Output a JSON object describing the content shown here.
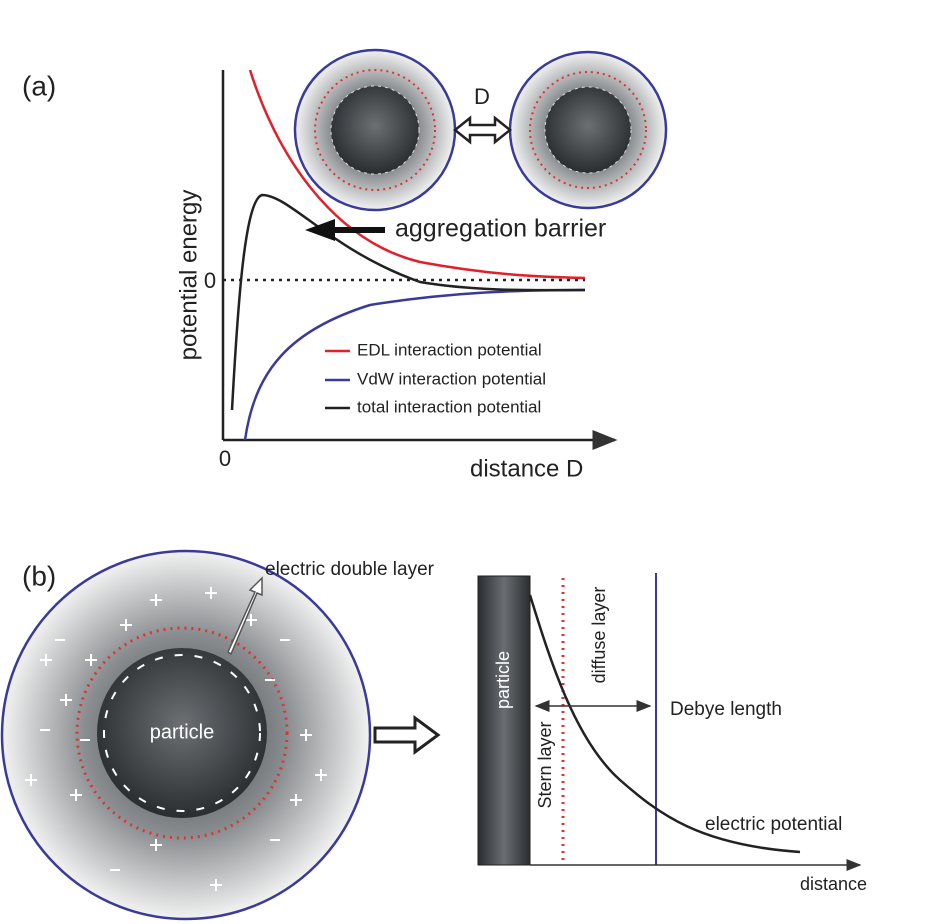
{
  "panel_a": {
    "label": "(a)",
    "separation": "D",
    "barrier": "aggregation barrier",
    "y_axis": "potential energy",
    "y_zero": "0",
    "x_zero": "0",
    "x_axis": "distance D",
    "legend": [
      "EDL interaction potential",
      "VdW interaction potential",
      "total interaction potential"
    ]
  },
  "panel_b": {
    "label": "(b)",
    "layer": "electric double layer",
    "particle": "particle",
    "particle_bar": "particle",
    "stern": "Stern layer",
    "diffuse": "diffuse layer",
    "debye": "Debye length",
    "potential": "electric potential",
    "x_axis": "distance"
  }
}
